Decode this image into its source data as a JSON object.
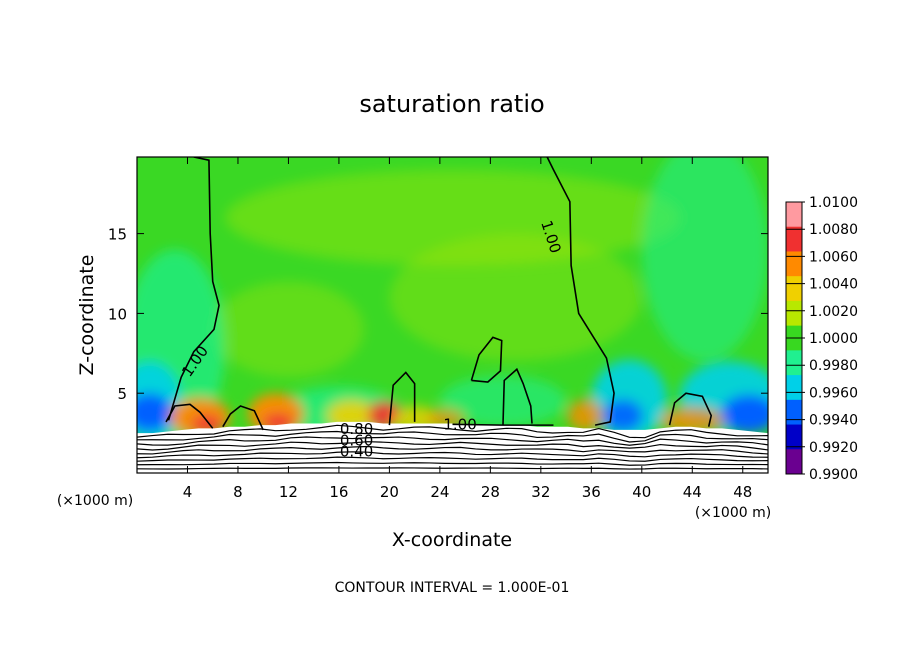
{
  "chart_data": {
    "type": "heatmap",
    "title": "saturation ratio",
    "xlabel": "X-coordinate",
    "ylabel": "Z-coordinate",
    "x_unit_left": "(×1000 m)",
    "x_unit_right": "(×1000 m)",
    "xlim": [
      0,
      50
    ],
    "ylim": [
      0,
      19.8
    ],
    "x_ticks": [
      "4",
      "8",
      "12",
      "16",
      "20",
      "24",
      "28",
      "32",
      "36",
      "40",
      "44",
      "48"
    ],
    "y_ticks": [
      "5",
      "10",
      "15"
    ],
    "footer": "CONTOUR INTERVAL = 1.000E-01",
    "colorbar": {
      "levels": [
        "1.0100",
        "1.0080",
        "1.0060",
        "1.0040",
        "1.0020",
        "1.0000",
        "0.9980",
        "0.9960",
        "0.9940",
        "0.9920",
        "0.9900"
      ],
      "colors": [
        "#ff9aa0",
        "#f03030",
        "#ff8a00",
        "#f0d000",
        "#b8e800",
        "#38d820",
        "#20f090",
        "#00d0e8",
        "#0060ff",
        "#0000c8",
        "#6a0090"
      ]
    },
    "contour_labels": [
      {
        "text": "1.00",
        "x": 4.6,
        "z": 7.0,
        "angle": -55
      },
      {
        "text": "1.00",
        "x": 32.8,
        "z": 14.8,
        "angle": 72
      },
      {
        "text": "1.00",
        "x": 25.6,
        "z": 3.05,
        "angle": 0
      },
      {
        "text": "0.80",
        "x": 17.4,
        "z": 2.75,
        "angle": 0
      },
      {
        "text": "0.60",
        "x": 17.4,
        "z": 2.05,
        "angle": 0
      },
      {
        "text": "0.40",
        "x": 17.4,
        "z": 1.35,
        "angle": 0
      }
    ]
  }
}
